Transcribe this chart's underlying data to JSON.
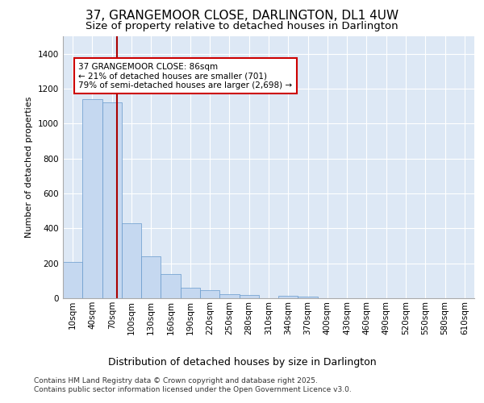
{
  "title": "37, GRANGEMOOR CLOSE, DARLINGTON, DL1 4UW",
  "subtitle": "Size of property relative to detached houses in Darlington",
  "xlabel": "Distribution of detached houses by size in Darlington",
  "ylabel": "Number of detached properties",
  "bar_color": "#c5d8f0",
  "bar_edge_color": "#6699cc",
  "background_color": "#dde8f5",
  "grid_color": "#ffffff",
  "categories": [
    "10sqm",
    "40sqm",
    "70sqm",
    "100sqm",
    "130sqm",
    "160sqm",
    "190sqm",
    "220sqm",
    "250sqm",
    "280sqm",
    "310sqm",
    "340sqm",
    "370sqm",
    "400sqm",
    "430sqm",
    "460sqm",
    "490sqm",
    "520sqm",
    "550sqm",
    "580sqm",
    "610sqm"
  ],
  "values": [
    210,
    1140,
    1120,
    430,
    240,
    140,
    60,
    45,
    25,
    20,
    0,
    15,
    10,
    0,
    0,
    0,
    0,
    0,
    0,
    0,
    0
  ],
  "ylim": [
    0,
    1500
  ],
  "yticks": [
    0,
    200,
    400,
    600,
    800,
    1000,
    1200,
    1400
  ],
  "vline_color": "#aa0000",
  "vline_pos": 2.27,
  "annotation_text": "37 GRANGEMOOR CLOSE: 86sqm\n← 21% of detached houses are smaller (701)\n79% of semi-detached houses are larger (2,698) →",
  "annotation_box_color": "#ffffff",
  "annotation_box_edge": "#cc0000",
  "footnote": "Contains HM Land Registry data © Crown copyright and database right 2025.\nContains public sector information licensed under the Open Government Licence v3.0.",
  "title_fontsize": 11,
  "subtitle_fontsize": 9.5,
  "xlabel_fontsize": 9,
  "ylabel_fontsize": 8,
  "tick_fontsize": 7.5,
  "annotation_fontsize": 7.5,
  "footnote_fontsize": 6.5
}
